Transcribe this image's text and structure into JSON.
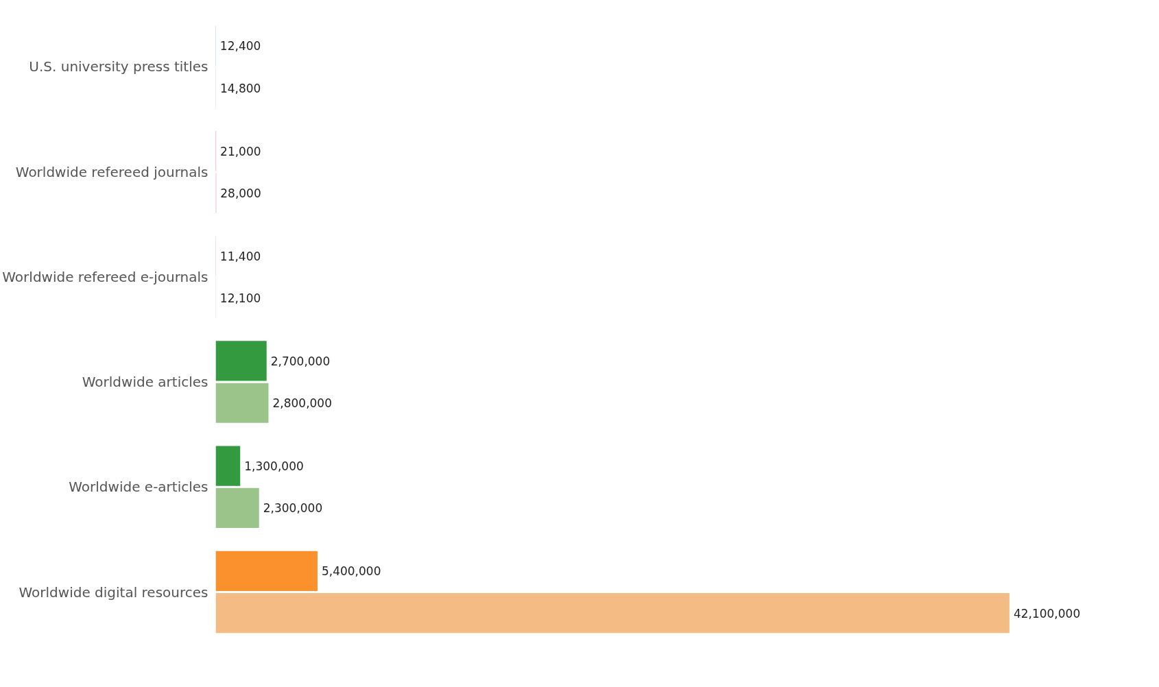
{
  "chart_data": {
    "type": "bar",
    "orientation": "horizontal",
    "tick_labels": "y",
    "categories": [
      "U.S. university press titles",
      "Worldwide refereed journals",
      "Worldwide refereed e-journals",
      "Worldwide articles",
      "Worldwide e-articles",
      "Worldwide digital resources"
    ],
    "series": [
      {
        "colors": [
          "#0a7ab8",
          "#b02e6a",
          "#b02e6a",
          "#339a3f",
          "#339a3f",
          "#fb912d"
        ],
        "values": [
          12400,
          21000,
          11400,
          2700000,
          1300000,
          5400000
        ],
        "value_labels": [
          "12,400",
          "21,000",
          "11,400",
          "2,700,000",
          "1,300,000",
          "5,400,000"
        ]
      },
      {
        "colors": [
          "#7fa9d3",
          "#d68aad",
          "#d68aad",
          "#9bc48b",
          "#9bc48b",
          "#f4bb85"
        ],
        "values": [
          14800,
          28000,
          12100,
          2800000,
          2300000,
          42100000
        ],
        "value_labels": [
          "14,800",
          "28,000",
          "12,100",
          "2,800,000",
          "2,300,000",
          "42,100,000"
        ]
      }
    ]
  }
}
